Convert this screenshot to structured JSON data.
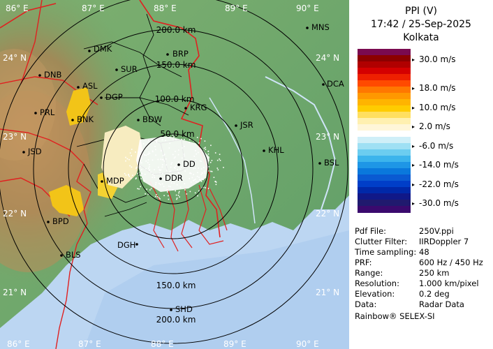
{
  "header": {
    "title": "PPI (V)",
    "datetime": "17:42 / 25-Sep-2025",
    "station": "Kolkata"
  },
  "scale": {
    "unit": "m/s",
    "ticks": [
      "30.0 m/s",
      "18.0 m/s",
      "10.0 m/s",
      "2.0 m/s",
      "-6.0 m/s",
      "-14.0 m/s",
      "-22.0 m/s",
      "-30.0 m/s"
    ],
    "colors": [
      "#7a0a50",
      "#8c0000",
      "#b00000",
      "#d40000",
      "#ee2000",
      "#ff4a00",
      "#ff7800",
      "#ff9800",
      "#ffb400",
      "#ffcc00",
      "#ffdf60",
      "#fff0b0",
      "#fff6d8",
      "#ffffff",
      "#cfeff8",
      "#9fe0f4",
      "#6ccdf0",
      "#3cb4ec",
      "#1e96e6",
      "#0a78dc",
      "#0a5ad2",
      "#003ec8",
      "#0028a8",
      "#101888",
      "#201a6e",
      "#3a0a6e"
    ]
  },
  "metadata": [
    {
      "key": "Pdf File:",
      "value": "250V.ppi"
    },
    {
      "key": "Clutter Filter:",
      "value": "IIRDoppler 7"
    },
    {
      "key": "Time sampling:",
      "value": "48"
    },
    {
      "key": "PRF:",
      "value": "600 Hz / 450 Hz"
    },
    {
      "key": "Range:",
      "value": "250 km"
    },
    {
      "key": "Resolution:",
      "value": "1.000 km/pixel"
    },
    {
      "key": "Elevation:",
      "value": "0.2 deg"
    },
    {
      "key": "Data:",
      "value": "Radar Data"
    }
  ],
  "footer": "Rainbow® SELEX-SI",
  "map": {
    "lon_labels_top": [
      "86° E",
      "87° E",
      "88° E",
      "89° E",
      "90° E"
    ],
    "lon_labels_bottom": [
      "86° E",
      "87° E",
      "88° E",
      "89° E",
      "90° E"
    ],
    "lat_labels_left": [
      "24° N",
      "23° N",
      "22° N",
      "21° N"
    ],
    "lat_labels_right": [
      "24° N",
      "23° N",
      "22° N",
      "21° N"
    ],
    "range_labels": [
      "50.0 km",
      "100.0 km",
      "150.0 km",
      "200.0 km",
      "150.0 km",
      "200.0 km"
    ],
    "stations": [
      "MNS",
      "DMK",
      "BRP",
      "DNB",
      "SUR",
      "DCA",
      "ASL",
      "DGP",
      "KRG",
      "PRL",
      "BNK",
      "BDW",
      "JSR",
      "JSD",
      "KHL",
      "DD",
      "BSL",
      "MDP",
      "DDR",
      "BPD",
      "DGH",
      "BLS",
      "SHD"
    ],
    "colors": {
      "land": "#6fa86a",
      "hills": "#b88a55",
      "sea": "#bcd6f2",
      "border": "#e02020",
      "district": "#000000"
    }
  }
}
